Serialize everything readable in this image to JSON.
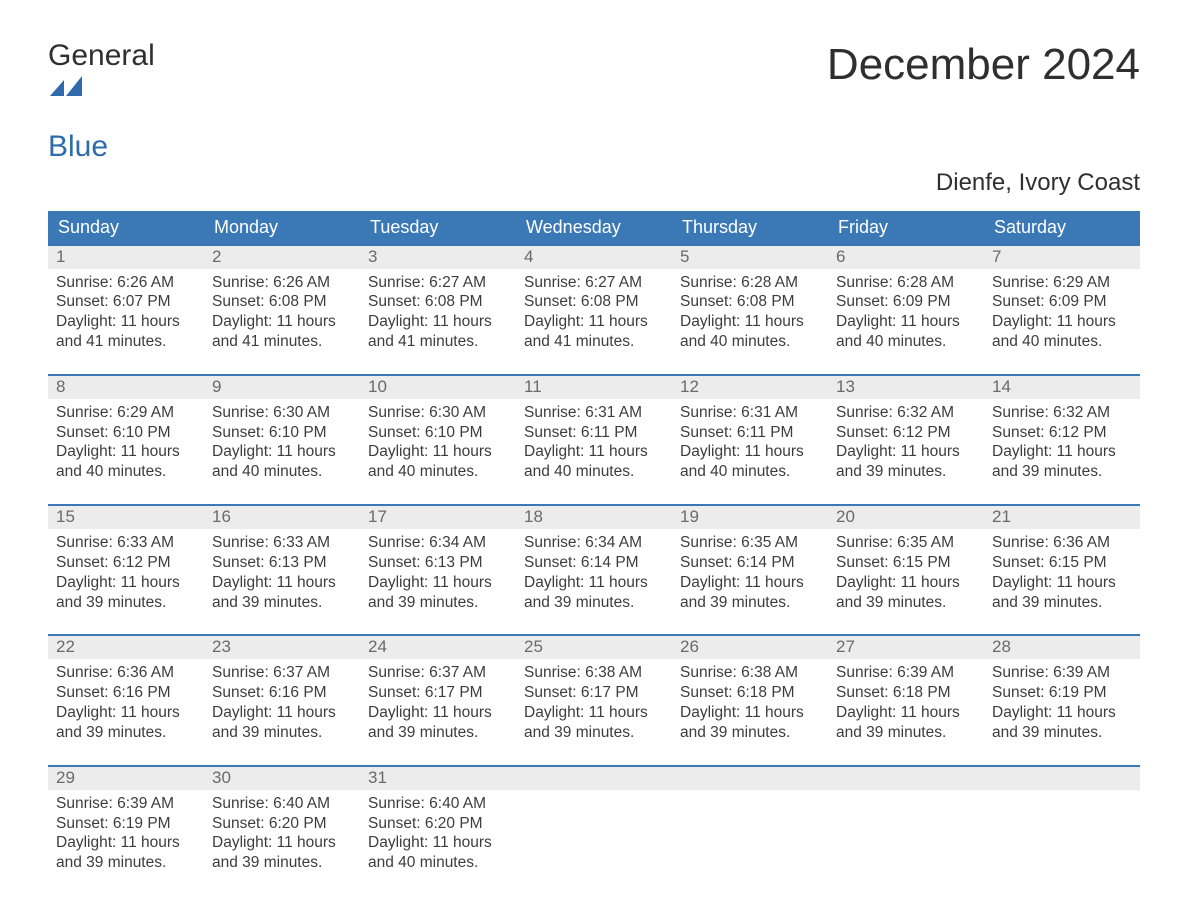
{
  "logo": {
    "word1": "General",
    "word2": "Blue",
    "mark_color": "#2e6bab",
    "text_color": "#2f2f2f"
  },
  "title": "December 2024",
  "subtitle": "Dienfe, Ivory Coast",
  "header_bg": "#3a78b6",
  "header_fg": "#ffffff",
  "daynum_bg": "#ececec",
  "daynum_fg": "#6a6a6a",
  "week_border": "#3a78b6",
  "body_text_color": "#3d3d3d",
  "background_color": "#ffffff",
  "font_family": "Arial",
  "title_fontsize": 44,
  "subtitle_fontsize": 24,
  "header_fontsize": 18,
  "daynum_fontsize": 17,
  "body_fontsize": 15.5,
  "day_headers": [
    "Sunday",
    "Monday",
    "Tuesday",
    "Wednesday",
    "Thursday",
    "Friday",
    "Saturday"
  ],
  "weeks": [
    [
      {
        "n": "1",
        "sunrise": "Sunrise: 6:26 AM",
        "sunset": "Sunset: 6:07 PM",
        "day1": "Daylight: 11 hours",
        "day2": "and 41 minutes."
      },
      {
        "n": "2",
        "sunrise": "Sunrise: 6:26 AM",
        "sunset": "Sunset: 6:08 PM",
        "day1": "Daylight: 11 hours",
        "day2": "and 41 minutes."
      },
      {
        "n": "3",
        "sunrise": "Sunrise: 6:27 AM",
        "sunset": "Sunset: 6:08 PM",
        "day1": "Daylight: 11 hours",
        "day2": "and 41 minutes."
      },
      {
        "n": "4",
        "sunrise": "Sunrise: 6:27 AM",
        "sunset": "Sunset: 6:08 PM",
        "day1": "Daylight: 11 hours",
        "day2": "and 41 minutes."
      },
      {
        "n": "5",
        "sunrise": "Sunrise: 6:28 AM",
        "sunset": "Sunset: 6:08 PM",
        "day1": "Daylight: 11 hours",
        "day2": "and 40 minutes."
      },
      {
        "n": "6",
        "sunrise": "Sunrise: 6:28 AM",
        "sunset": "Sunset: 6:09 PM",
        "day1": "Daylight: 11 hours",
        "day2": "and 40 minutes."
      },
      {
        "n": "7",
        "sunrise": "Sunrise: 6:29 AM",
        "sunset": "Sunset: 6:09 PM",
        "day1": "Daylight: 11 hours",
        "day2": "and 40 minutes."
      }
    ],
    [
      {
        "n": "8",
        "sunrise": "Sunrise: 6:29 AM",
        "sunset": "Sunset: 6:10 PM",
        "day1": "Daylight: 11 hours",
        "day2": "and 40 minutes."
      },
      {
        "n": "9",
        "sunrise": "Sunrise: 6:30 AM",
        "sunset": "Sunset: 6:10 PM",
        "day1": "Daylight: 11 hours",
        "day2": "and 40 minutes."
      },
      {
        "n": "10",
        "sunrise": "Sunrise: 6:30 AM",
        "sunset": "Sunset: 6:10 PM",
        "day1": "Daylight: 11 hours",
        "day2": "and 40 minutes."
      },
      {
        "n": "11",
        "sunrise": "Sunrise: 6:31 AM",
        "sunset": "Sunset: 6:11 PM",
        "day1": "Daylight: 11 hours",
        "day2": "and 40 minutes."
      },
      {
        "n": "12",
        "sunrise": "Sunrise: 6:31 AM",
        "sunset": "Sunset: 6:11 PM",
        "day1": "Daylight: 11 hours",
        "day2": "and 40 minutes."
      },
      {
        "n": "13",
        "sunrise": "Sunrise: 6:32 AM",
        "sunset": "Sunset: 6:12 PM",
        "day1": "Daylight: 11 hours",
        "day2": "and 39 minutes."
      },
      {
        "n": "14",
        "sunrise": "Sunrise: 6:32 AM",
        "sunset": "Sunset: 6:12 PM",
        "day1": "Daylight: 11 hours",
        "day2": "and 39 minutes."
      }
    ],
    [
      {
        "n": "15",
        "sunrise": "Sunrise: 6:33 AM",
        "sunset": "Sunset: 6:12 PM",
        "day1": "Daylight: 11 hours",
        "day2": "and 39 minutes."
      },
      {
        "n": "16",
        "sunrise": "Sunrise: 6:33 AM",
        "sunset": "Sunset: 6:13 PM",
        "day1": "Daylight: 11 hours",
        "day2": "and 39 minutes."
      },
      {
        "n": "17",
        "sunrise": "Sunrise: 6:34 AM",
        "sunset": "Sunset: 6:13 PM",
        "day1": "Daylight: 11 hours",
        "day2": "and 39 minutes."
      },
      {
        "n": "18",
        "sunrise": "Sunrise: 6:34 AM",
        "sunset": "Sunset: 6:14 PM",
        "day1": "Daylight: 11 hours",
        "day2": "and 39 minutes."
      },
      {
        "n": "19",
        "sunrise": "Sunrise: 6:35 AM",
        "sunset": "Sunset: 6:14 PM",
        "day1": "Daylight: 11 hours",
        "day2": "and 39 minutes."
      },
      {
        "n": "20",
        "sunrise": "Sunrise: 6:35 AM",
        "sunset": "Sunset: 6:15 PM",
        "day1": "Daylight: 11 hours",
        "day2": "and 39 minutes."
      },
      {
        "n": "21",
        "sunrise": "Sunrise: 6:36 AM",
        "sunset": "Sunset: 6:15 PM",
        "day1": "Daylight: 11 hours",
        "day2": "and 39 minutes."
      }
    ],
    [
      {
        "n": "22",
        "sunrise": "Sunrise: 6:36 AM",
        "sunset": "Sunset: 6:16 PM",
        "day1": "Daylight: 11 hours",
        "day2": "and 39 minutes."
      },
      {
        "n": "23",
        "sunrise": "Sunrise: 6:37 AM",
        "sunset": "Sunset: 6:16 PM",
        "day1": "Daylight: 11 hours",
        "day2": "and 39 minutes."
      },
      {
        "n": "24",
        "sunrise": "Sunrise: 6:37 AM",
        "sunset": "Sunset: 6:17 PM",
        "day1": "Daylight: 11 hours",
        "day2": "and 39 minutes."
      },
      {
        "n": "25",
        "sunrise": "Sunrise: 6:38 AM",
        "sunset": "Sunset: 6:17 PM",
        "day1": "Daylight: 11 hours",
        "day2": "and 39 minutes."
      },
      {
        "n": "26",
        "sunrise": "Sunrise: 6:38 AM",
        "sunset": "Sunset: 6:18 PM",
        "day1": "Daylight: 11 hours",
        "day2": "and 39 minutes."
      },
      {
        "n": "27",
        "sunrise": "Sunrise: 6:39 AM",
        "sunset": "Sunset: 6:18 PM",
        "day1": "Daylight: 11 hours",
        "day2": "and 39 minutes."
      },
      {
        "n": "28",
        "sunrise": "Sunrise: 6:39 AM",
        "sunset": "Sunset: 6:19 PM",
        "day1": "Daylight: 11 hours",
        "day2": "and 39 minutes."
      }
    ],
    [
      {
        "n": "29",
        "sunrise": "Sunrise: 6:39 AM",
        "sunset": "Sunset: 6:19 PM",
        "day1": "Daylight: 11 hours",
        "day2": "and 39 minutes."
      },
      {
        "n": "30",
        "sunrise": "Sunrise: 6:40 AM",
        "sunset": "Sunset: 6:20 PM",
        "day1": "Daylight: 11 hours",
        "day2": "and 39 minutes."
      },
      {
        "n": "31",
        "sunrise": "Sunrise: 6:40 AM",
        "sunset": "Sunset: 6:20 PM",
        "day1": "Daylight: 11 hours",
        "day2": "and 40 minutes."
      },
      {
        "empty": true
      },
      {
        "empty": true
      },
      {
        "empty": true
      },
      {
        "empty": true
      }
    ]
  ]
}
